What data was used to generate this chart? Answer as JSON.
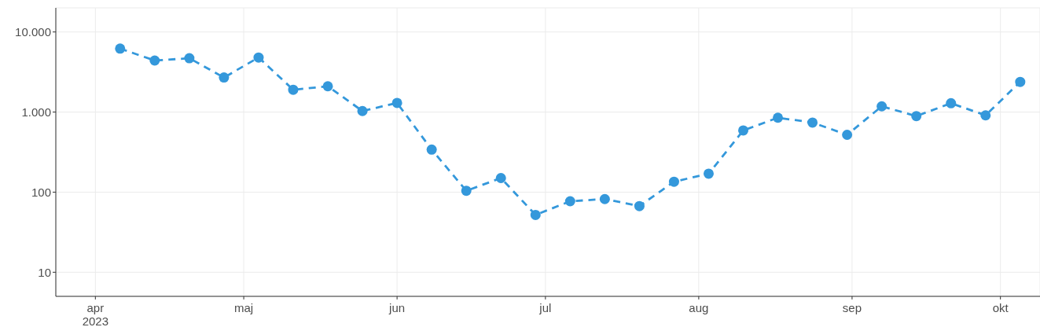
{
  "chart_data": {
    "type": "line",
    "x": [
      "2023-04-06",
      "2023-04-13",
      "2023-04-20",
      "2023-04-27",
      "2023-05-04",
      "2023-05-11",
      "2023-05-18",
      "2023-05-25",
      "2023-06-01",
      "2023-06-08",
      "2023-06-15",
      "2023-06-22",
      "2023-06-29",
      "2023-07-06",
      "2023-07-13",
      "2023-07-20",
      "2023-07-27",
      "2023-08-03",
      "2023-08-10",
      "2023-08-17",
      "2023-08-24",
      "2023-08-31",
      "2023-09-07",
      "2023-09-14",
      "2023-09-21",
      "2023-09-28",
      "2023-10-05"
    ],
    "series": [
      {
        "color": "#3498db",
        "values": [
          6200,
          4400,
          4700,
          2700,
          4800,
          1900,
          2100,
          1030,
          1300,
          340,
          104,
          150,
          52,
          77,
          82,
          67,
          135,
          170,
          590,
          850,
          740,
          520,
          1180,
          890,
          1290,
          910,
          2380
        ]
      }
    ],
    "xlim": [
      "2023-03-24",
      "2023-10-09"
    ],
    "xticks": [
      {
        "value": "2023-04-01",
        "label": "apr\n2023"
      },
      {
        "value": "2023-05-01",
        "label": "maj"
      },
      {
        "value": "2023-06-01",
        "label": "jun"
      },
      {
        "value": "2023-07-01",
        "label": "jul"
      },
      {
        "value": "2023-08-01",
        "label": "aug"
      },
      {
        "value": "2023-09-01",
        "label": "sep"
      },
      {
        "value": "2023-10-01",
        "label": "okt"
      }
    ],
    "ylim": [
      5,
      20000
    ],
    "yticks": [
      10,
      100,
      {
        "value": 1000,
        "label": "1.000"
      },
      {
        "value": 10000,
        "label": "10.000"
      }
    ],
    "log": true,
    "grid": true,
    "marker": "circle",
    "line_style": "dashed"
  }
}
